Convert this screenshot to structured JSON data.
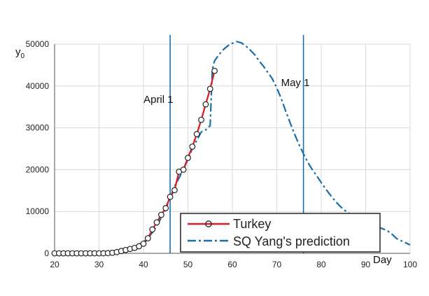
{
  "chart_data": {
    "type": "line",
    "x_axis": {
      "min": 20,
      "max": 100,
      "ticks": [
        20,
        30,
        40,
        50,
        60,
        70,
        80,
        90,
        100
      ],
      "label": "Day"
    },
    "y_axis": {
      "min": 0,
      "max": 50000,
      "ticks": [
        0,
        10000,
        20000,
        30000,
        40000,
        50000
      ],
      "label": "y0"
    },
    "grid": true,
    "legend_position": "bottom-right",
    "vlines": [
      {
        "x": 46,
        "label": "April 1"
      },
      {
        "x": 76,
        "label": "May 1"
      }
    ],
    "series": [
      {
        "name": "Turkey",
        "color": "#d91f26",
        "marker": "open-circle",
        "points": [
          [
            20,
            0
          ],
          [
            21,
            0
          ],
          [
            22,
            0
          ],
          [
            23,
            0
          ],
          [
            24,
            0
          ],
          [
            25,
            0
          ],
          [
            26,
            0
          ],
          [
            27,
            0
          ],
          [
            28,
            0
          ],
          [
            29,
            0
          ],
          [
            30,
            0
          ],
          [
            31,
            10
          ],
          [
            32,
            50
          ],
          [
            33,
            120
          ],
          [
            34,
            300
          ],
          [
            35,
            550
          ],
          [
            36,
            800
          ],
          [
            37,
            1050
          ],
          [
            38,
            1300
          ],
          [
            39,
            1700
          ],
          [
            40,
            2300
          ],
          [
            41,
            3600
          ],
          [
            42,
            5700
          ],
          [
            43,
            7400
          ],
          [
            44,
            9200
          ],
          [
            45,
            10800
          ],
          [
            46,
            13500
          ],
          [
            47,
            15100
          ],
          [
            48,
            19500
          ],
          [
            49,
            20000
          ],
          [
            50,
            22800
          ],
          [
            51,
            25500
          ],
          [
            52,
            28500
          ],
          [
            53,
            31900
          ],
          [
            54,
            35600
          ],
          [
            55,
            39300
          ],
          [
            56,
            43600
          ]
        ]
      },
      {
        "name": "SQ Yang's prediction",
        "color": "#1a6fab",
        "style": "dash-dot",
        "points": [
          [
            20,
            0
          ],
          [
            25,
            0
          ],
          [
            30,
            0
          ],
          [
            33,
            100
          ],
          [
            35,
            500
          ],
          [
            37,
            1000
          ],
          [
            39,
            2000
          ],
          [
            41,
            3500
          ],
          [
            43,
            6500
          ],
          [
            45,
            10500
          ],
          [
            47,
            16000
          ],
          [
            49,
            20000
          ],
          [
            51,
            25000
          ],
          [
            53,
            29000
          ],
          [
            54,
            29500
          ],
          [
            55,
            30500
          ],
          [
            55.5,
            44000
          ],
          [
            56,
            46000
          ],
          [
            57,
            47500
          ],
          [
            58,
            48700
          ],
          [
            59,
            49600
          ],
          [
            60,
            50200
          ],
          [
            61,
            50600
          ],
          [
            62,
            50300
          ],
          [
            63,
            49600
          ],
          [
            64,
            48600
          ],
          [
            65,
            47500
          ],
          [
            66,
            46000
          ],
          [
            67,
            44700
          ],
          [
            68,
            43200
          ],
          [
            69,
            41700
          ],
          [
            70,
            39500
          ],
          [
            71,
            37000
          ],
          [
            72,
            34000
          ],
          [
            73,
            31200
          ],
          [
            74,
            28500
          ],
          [
            75,
            26000
          ],
          [
            76,
            23800
          ],
          [
            77,
            21700
          ],
          [
            78,
            20000
          ],
          [
            79,
            18500
          ],
          [
            80,
            16900
          ],
          [
            81,
            15400
          ],
          [
            82,
            14000
          ],
          [
            83,
            12700
          ],
          [
            84,
            11500
          ],
          [
            85,
            10500
          ],
          [
            86,
            9700
          ],
          [
            87,
            9000
          ],
          [
            88,
            8400
          ],
          [
            89,
            7900
          ],
          [
            90,
            7400
          ],
          [
            91,
            7000
          ],
          [
            92,
            6600
          ],
          [
            93,
            6200
          ],
          [
            94,
            5800
          ],
          [
            95,
            5300
          ],
          [
            96,
            4500
          ],
          [
            97,
            3500
          ],
          [
            98,
            3000
          ],
          [
            99,
            2500
          ],
          [
            100,
            2000
          ]
        ]
      }
    ]
  }
}
